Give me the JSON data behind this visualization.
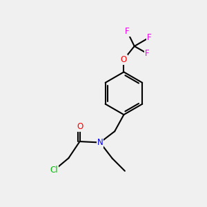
{
  "background_color": "#f0f0f0",
  "bond_color": "#000000",
  "atom_colors": {
    "O": "#ff0000",
    "N": "#0000ee",
    "F": "#ee00ee",
    "Cl": "#00bb00"
  },
  "figsize": [
    3.0,
    3.0
  ],
  "dpi": 100
}
